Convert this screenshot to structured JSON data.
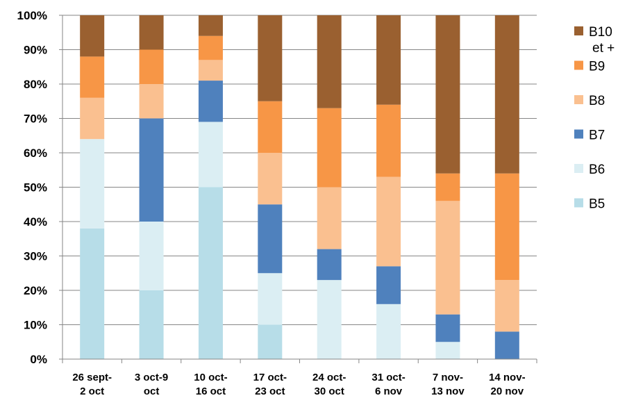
{
  "chart_data": {
    "type": "bar",
    "stacked": true,
    "normalized_percent": true,
    "categories": [
      [
        "26 sept-",
        "2 oct"
      ],
      [
        "3 oct-9",
        "oct"
      ],
      [
        "10 oct-",
        "16 oct"
      ],
      [
        "17 oct-",
        "23 oct"
      ],
      [
        "24 oct-",
        "30 oct"
      ],
      [
        "31 oct-",
        "6 nov"
      ],
      [
        "7 nov-",
        "13 nov"
      ],
      [
        "14 nov-",
        "20 nov"
      ]
    ],
    "series": [
      {
        "name": "B5",
        "color": "#b7dde8",
        "values": [
          38,
          20,
          50,
          10,
          0,
          0,
          0,
          0
        ]
      },
      {
        "name": "B6",
        "color": "#dbeef3",
        "values": [
          26,
          20,
          19,
          15,
          23,
          16,
          5,
          0
        ]
      },
      {
        "name": "B7",
        "color": "#4f81bd",
        "values": [
          0,
          30,
          12,
          20,
          9,
          11,
          8,
          8
        ]
      },
      {
        "name": "B8",
        "color": "#fac090",
        "values": [
          12,
          10,
          6,
          15,
          18,
          26,
          33,
          15
        ]
      },
      {
        "name": "B9",
        "color": "#f79646",
        "values": [
          12,
          10,
          7,
          15,
          23,
          21,
          8,
          31
        ]
      },
      {
        "name": "B10 et +",
        "legend_lines": [
          "B10",
          "et +"
        ],
        "color": "#9a6030",
        "values": [
          12,
          10,
          6,
          25,
          27,
          26,
          46,
          46
        ]
      }
    ],
    "ylim": [
      0,
      100
    ],
    "yticks": [
      "0%",
      "10%",
      "20%",
      "30%",
      "40%",
      "50%",
      "60%",
      "70%",
      "80%",
      "90%",
      "100%"
    ],
    "title": "",
    "xlabel": "",
    "ylabel": "",
    "grid": true,
    "legend_position": "right"
  }
}
